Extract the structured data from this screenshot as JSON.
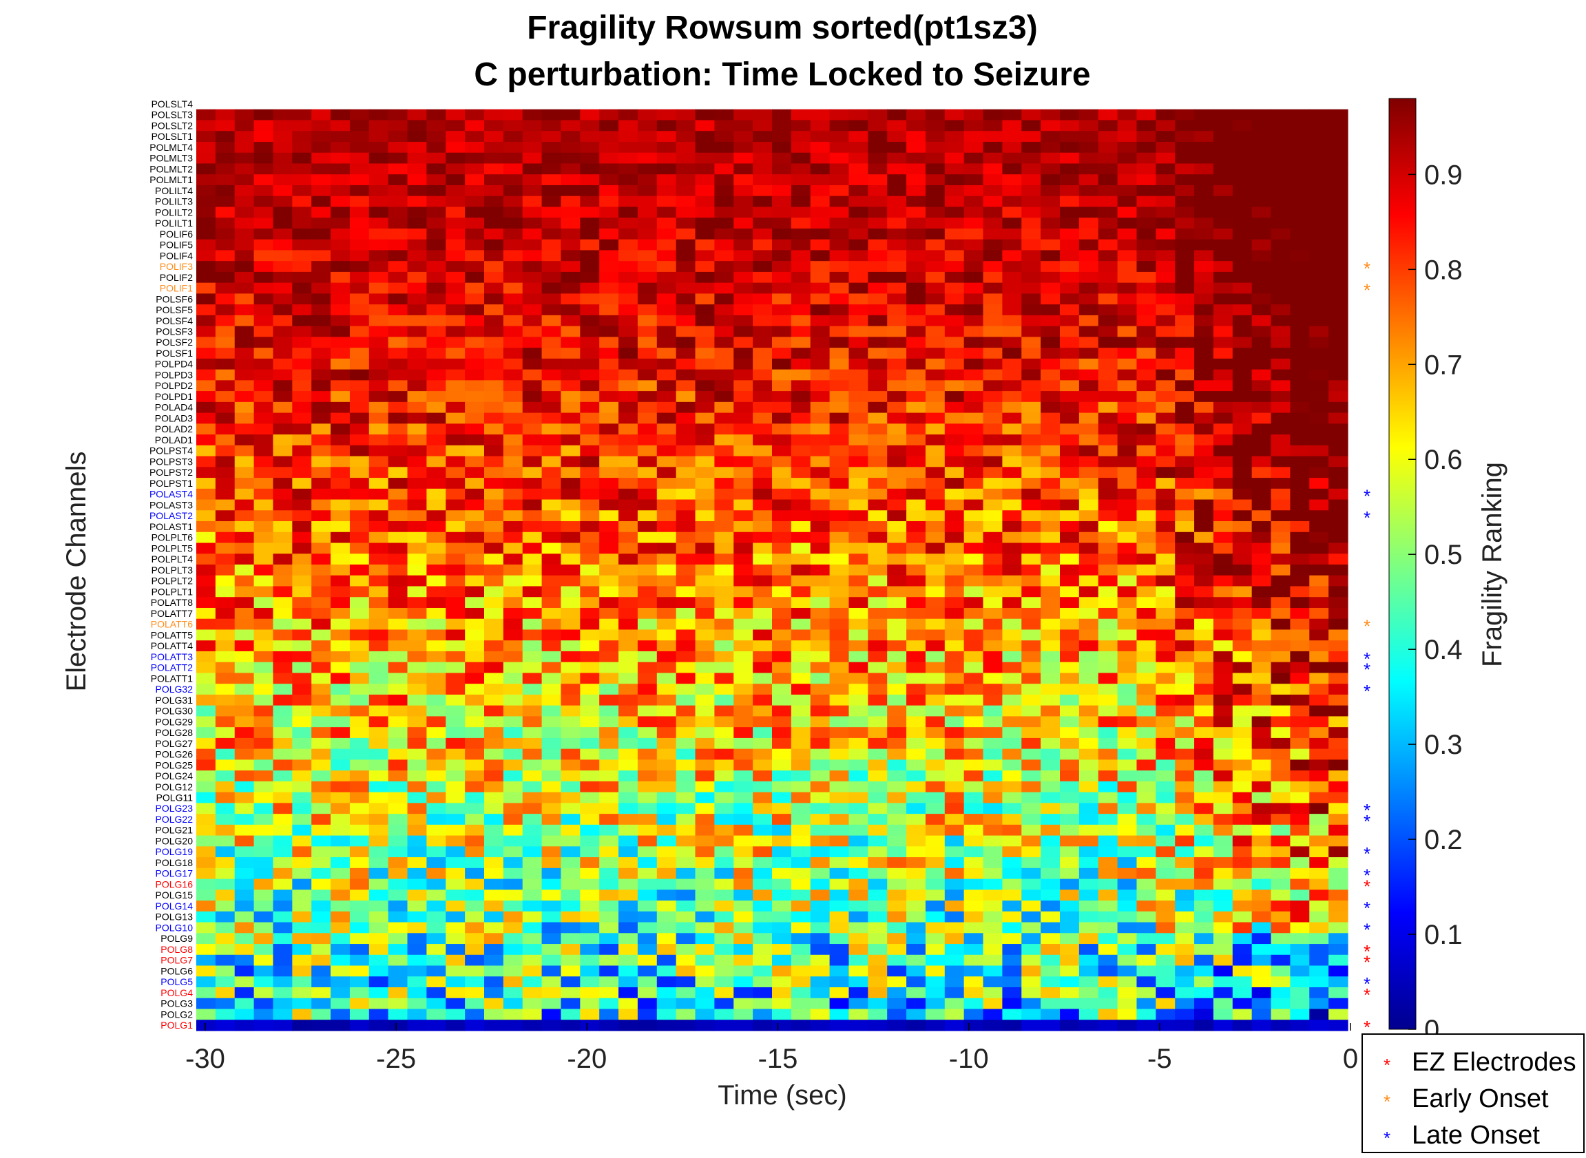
{
  "chart_data": {
    "type": "heatmap",
    "title": "Fragility Rowsum sorted(pt1sz3)",
    "subtitle": "C perturbation:  Time Locked to Seizure",
    "xlabel": "Time (sec)",
    "ylabel": "Electrode Channels",
    "colorbar_label": "Fragility Ranking",
    "xlim": [
      -30,
      0
    ],
    "x_ticks": [
      -30,
      -25,
      -20,
      -15,
      -10,
      -5,
      0
    ],
    "color_range": [
      0,
      0.98
    ],
    "colorbar_ticks": [
      0,
      0.1,
      0.2,
      0.3,
      0.4,
      0.5,
      0.6,
      0.7,
      0.8,
      0.9
    ],
    "colormap": "jet",
    "time_bins": 60,
    "channels": [
      {
        "name": "POLSLT4",
        "group": "none"
      },
      {
        "name": "POLSLT3",
        "group": "none"
      },
      {
        "name": "POLSLT2",
        "group": "none"
      },
      {
        "name": "POLSLT1",
        "group": "none"
      },
      {
        "name": "POLMLT4",
        "group": "none"
      },
      {
        "name": "POLMLT3",
        "group": "none"
      },
      {
        "name": "POLMLT2",
        "group": "none"
      },
      {
        "name": "POLMLT1",
        "group": "none"
      },
      {
        "name": "POLILT4",
        "group": "none"
      },
      {
        "name": "POLILT3",
        "group": "none"
      },
      {
        "name": "POLILT2",
        "group": "none"
      },
      {
        "name": "POLILT1",
        "group": "none"
      },
      {
        "name": "POLIF6",
        "group": "none"
      },
      {
        "name": "POLIF5",
        "group": "none"
      },
      {
        "name": "POLIF4",
        "group": "none"
      },
      {
        "name": "POLIF3",
        "group": "early"
      },
      {
        "name": "POLIF2",
        "group": "none"
      },
      {
        "name": "POLIF1",
        "group": "early"
      },
      {
        "name": "POLSF6",
        "group": "none"
      },
      {
        "name": "POLSF5",
        "group": "none"
      },
      {
        "name": "POLSF4",
        "group": "none"
      },
      {
        "name": "POLSF3",
        "group": "none"
      },
      {
        "name": "POLSF2",
        "group": "none"
      },
      {
        "name": "POLSF1",
        "group": "none"
      },
      {
        "name": "POLPD4",
        "group": "none"
      },
      {
        "name": "POLPD3",
        "group": "none"
      },
      {
        "name": "POLPD2",
        "group": "none"
      },
      {
        "name": "POLPD1",
        "group": "none"
      },
      {
        "name": "POLAD4",
        "group": "none"
      },
      {
        "name": "POLAD3",
        "group": "none"
      },
      {
        "name": "POLAD2",
        "group": "none"
      },
      {
        "name": "POLAD1",
        "group": "none"
      },
      {
        "name": "POLPST4",
        "group": "none"
      },
      {
        "name": "POLPST3",
        "group": "none"
      },
      {
        "name": "POLPST2",
        "group": "none"
      },
      {
        "name": "POLPST1",
        "group": "none"
      },
      {
        "name": "POLAST4",
        "group": "late"
      },
      {
        "name": "POLAST3",
        "group": "none"
      },
      {
        "name": "POLAST2",
        "group": "late"
      },
      {
        "name": "POLAST1",
        "group": "none"
      },
      {
        "name": "POLPLT6",
        "group": "none"
      },
      {
        "name": "POLPLT5",
        "group": "none"
      },
      {
        "name": "POLPLT4",
        "group": "none"
      },
      {
        "name": "POLPLT3",
        "group": "none"
      },
      {
        "name": "POLPLT2",
        "group": "none"
      },
      {
        "name": "POLPLT1",
        "group": "none"
      },
      {
        "name": "POLATT8",
        "group": "none"
      },
      {
        "name": "POLATT7",
        "group": "none"
      },
      {
        "name": "POLATT6",
        "group": "early"
      },
      {
        "name": "POLATT5",
        "group": "none"
      },
      {
        "name": "POLATT4",
        "group": "none"
      },
      {
        "name": "POLATT3",
        "group": "late"
      },
      {
        "name": "POLATT2",
        "group": "late"
      },
      {
        "name": "POLATT1",
        "group": "none"
      },
      {
        "name": "POLG32",
        "group": "late"
      },
      {
        "name": "POLG31",
        "group": "none"
      },
      {
        "name": "POLG30",
        "group": "none"
      },
      {
        "name": "POLG29",
        "group": "none"
      },
      {
        "name": "POLG28",
        "group": "none"
      },
      {
        "name": "POLG27",
        "group": "none"
      },
      {
        "name": "POLG26",
        "group": "none"
      },
      {
        "name": "POLG25",
        "group": "none"
      },
      {
        "name": "POLG24",
        "group": "none"
      },
      {
        "name": "POLG12",
        "group": "none"
      },
      {
        "name": "POLG11",
        "group": "none"
      },
      {
        "name": "POLG23",
        "group": "late"
      },
      {
        "name": "POLG22",
        "group": "late"
      },
      {
        "name": "POLG21",
        "group": "none"
      },
      {
        "name": "POLG20",
        "group": "none"
      },
      {
        "name": "POLG19",
        "group": "late"
      },
      {
        "name": "POLG18",
        "group": "none"
      },
      {
        "name": "POLG17",
        "group": "late"
      },
      {
        "name": "POLG16",
        "group": "ez"
      },
      {
        "name": "POLG15",
        "group": "none"
      },
      {
        "name": "POLG14",
        "group": "late"
      },
      {
        "name": "POLG13",
        "group": "none"
      },
      {
        "name": "POLG10",
        "group": "late"
      },
      {
        "name": "POLG9",
        "group": "none"
      },
      {
        "name": "POLG8",
        "group": "ez"
      },
      {
        "name": "POLG7",
        "group": "ez"
      },
      {
        "name": "POLG6",
        "group": "none"
      },
      {
        "name": "POLG5",
        "group": "late"
      },
      {
        "name": "POLG4",
        "group": "ez"
      },
      {
        "name": "POLG3",
        "group": "none"
      },
      {
        "name": "POLG2",
        "group": "none"
      },
      {
        "name": "POLG1",
        "group": "ez"
      }
    ],
    "legend": {
      "position": "bottom-right",
      "entries": [
        {
          "label": "EZ Electrodes",
          "color": "#ff0000"
        },
        {
          "label": "Early Onset",
          "color": "#ff8c1a"
        },
        {
          "label": "Late Onset",
          "color": "#0000ff"
        }
      ]
    },
    "group_colors": {
      "none": "#000000",
      "ez": "#ff0000",
      "early": "#ff8c1a",
      "late": "#0000ff"
    },
    "notes": "Heatmap cell values approximated procedurally: fragility decreases from top channels (~0.85-0.95) to bottom channels (~0.1-0.4), with the bottom row (POLG1) near 0.05 and right-most bins rising toward seizure onset."
  }
}
